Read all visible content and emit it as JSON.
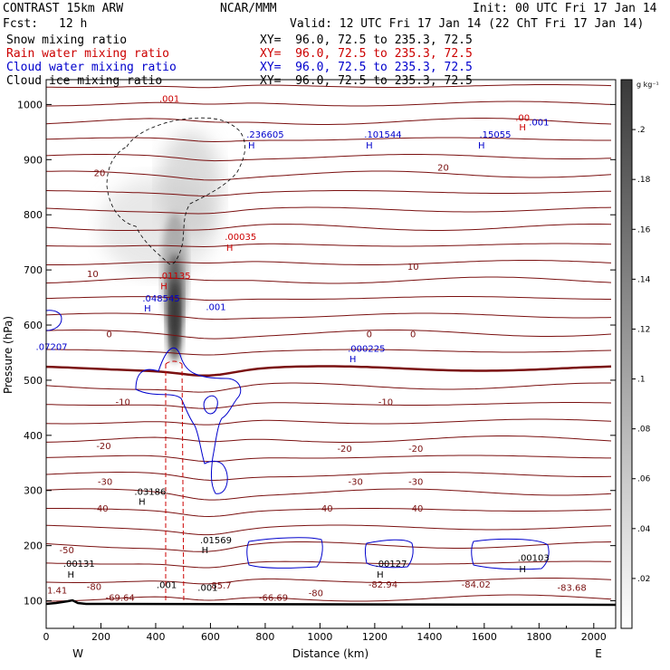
{
  "header": {
    "title": "CONTRAST 15km ARW",
    "center": "NCAR/MMM",
    "init": "Init: 00 UTC Fri 17 Jan 14",
    "fcst_label": "Fcst:",
    "fcst_value": "12 h",
    "valid": "Valid: 12 UTC Fri 17 Jan 14 (22 ChT Fri 17 Jan 14)"
  },
  "legend": [
    {
      "name": "Snow mixing ratio",
      "xy": "XY=  96.0, 72.5 to 235.3, 72.5",
      "color": "#000000"
    },
    {
      "name": "Rain water mixing ratio",
      "xy": "XY=  96.0, 72.5 to 235.3, 72.5",
      "color": "#cc0000"
    },
    {
      "name": "Cloud water mixing ratio",
      "xy": "XY=  96.0, 72.5 to 235.3, 72.5",
      "color": "#0000cc"
    },
    {
      "name": "Cloud ice mixing ratio",
      "xy": "XY=  96.0, 72.5 to 235.3, 72.5",
      "color": "#000000"
    }
  ],
  "chart_data": {
    "type": "contour",
    "xlabel": "Distance (km)",
    "ylabel": "Pressure (hPa)",
    "x_end_labels": {
      "left": "W",
      "right": "E"
    },
    "xlim": [
      0,
      2080
    ],
    "ylim": [
      1045,
      50
    ],
    "x_ticks": [
      0,
      200,
      400,
      600,
      800,
      1000,
      1200,
      1400,
      1600,
      1800,
      2000
    ],
    "y_ticks": [
      100,
      200,
      300,
      400,
      500,
      600,
      700,
      800,
      900,
      1000
    ],
    "colorbar": {
      "unit": "g kg⁻¹",
      "range": [
        0,
        0.22
      ],
      "tick_labels": [
        ".2",
        ".18",
        ".16",
        ".14",
        ".12",
        ".1",
        ".08",
        ".06",
        ".04",
        ".02"
      ],
      "tick_values": [
        0.2,
        0.18,
        0.16,
        0.14,
        0.12,
        0.1,
        0.08,
        0.06,
        0.04,
        0.02
      ]
    },
    "temperature_labels": [
      {
        "text": "-69.64",
        "x": 270,
        "p": 100
      },
      {
        "text": "-66.69",
        "x": 830,
        "p": 100
      },
      {
        "text": "-80",
        "x": 175,
        "p": 120
      },
      {
        "text": "-80",
        "x": 985,
        "p": 108
      },
      {
        "text": "-83.68",
        "x": 1920,
        "p": 118
      },
      {
        "text": "-82.94",
        "x": 1230,
        "p": 124
      },
      {
        "text": "-84.02",
        "x": 1570,
        "p": 124
      },
      {
        "text": "85.7",
        "x": 640,
        "p": 122
      },
      {
        "text": "-50",
        "x": 75,
        "p": 186
      },
      {
        "text": "-40",
        "x": 200,
        "p": 262
      },
      {
        "text": "-40",
        "x": 1020,
        "p": 262
      },
      {
        "text": "-40",
        "x": 1350,
        "p": 262
      },
      {
        "text": "-30",
        "x": 215,
        "p": 310
      },
      {
        "text": "-30",
        "x": 1130,
        "p": 310
      },
      {
        "text": "-30",
        "x": 1350,
        "p": 310
      },
      {
        "text": "-20",
        "x": 210,
        "p": 375
      },
      {
        "text": "-20",
        "x": 1090,
        "p": 370
      },
      {
        "text": "-20",
        "x": 1350,
        "p": 370
      },
      {
        "text": "-10",
        "x": 280,
        "p": 455
      },
      {
        "text": "-10",
        "x": 1240,
        "p": 455
      },
      {
        "text": "0",
        "x": 230,
        "p": 578
      },
      {
        "text": "0",
        "x": 1180,
        "p": 578
      },
      {
        "text": "0",
        "x": 1340,
        "p": 578
      },
      {
        "text": "10",
        "x": 170,
        "p": 687
      },
      {
        "text": "10",
        "x": 1340,
        "p": 700
      },
      {
        "text": "20",
        "x": 195,
        "p": 870
      },
      {
        "text": "20",
        "x": 1450,
        "p": 880
      },
      {
        "text": "1.41",
        "x": 40,
        "p": 113
      }
    ],
    "snow_ice_labels": [
      {
        "text": "H",
        "x": 90,
        "p": 142
      },
      {
        "text": ".00131",
        "x": 120,
        "p": 162
      },
      {
        "text": "H",
        "x": 580,
        "p": 186
      },
      {
        "text": ".01569",
        "x": 620,
        "p": 204
      },
      {
        "text": "H",
        "x": 350,
        "p": 274
      },
      {
        "text": ".03186",
        "x": 380,
        "p": 292
      },
      {
        "text": ".001",
        "x": 440,
        "p": 123
      },
      {
        "text": ".001",
        "x": 590,
        "p": 118
      },
      {
        "text": "H",
        "x": 1220,
        "p": 142
      },
      {
        "text": ".00127",
        "x": 1260,
        "p": 162
      },
      {
        "text": "H",
        "x": 1740,
        "p": 152
      },
      {
        "text": ".00103",
        "x": 1780,
        "p": 172
      }
    ],
    "cloud_water_labels": [
      {
        "text": "H",
        "x": 1120,
        "p": 533
      },
      {
        "text": ".000225",
        "x": 1170,
        "p": 552
      },
      {
        "text": "H",
        "x": 370,
        "p": 625
      },
      {
        "text": ".048545",
        "x": 420,
        "p": 643
      },
      {
        "text": ".001",
        "x": 620,
        "p": 627
      },
      {
        "text": ".07207",
        "x": 20,
        "p": 555
      },
      {
        "text": "H",
        "x": 750,
        "p": 920
      },
      {
        "text": ".236605",
        "x": 800,
        "p": 940
      },
      {
        "text": "H",
        "x": 1180,
        "p": 920
      },
      {
        "text": ".101544",
        "x": 1230,
        "p": 940
      },
      {
        "text": "H",
        "x": 1590,
        "p": 920
      },
      {
        "text": ".15055",
        "x": 1640,
        "p": 940
      },
      {
        "text": ".001",
        "x": 1800,
        "p": 962
      }
    ],
    "rain_labels": [
      {
        "text": "H",
        "x": 430,
        "p": 665
      },
      {
        "text": ".01135",
        "x": 470,
        "p": 684
      },
      {
        "text": "H",
        "x": 670,
        "p": 735
      },
      {
        "text": ".00035",
        "x": 710,
        "p": 754
      },
      {
        "text": "H",
        "x": 1740,
        "p": 953
      },
      {
        "text": ".00",
        "x": 1740,
        "p": 970
      },
      {
        "text": ".001",
        "x": 450,
        "p": 1005
      }
    ]
  }
}
